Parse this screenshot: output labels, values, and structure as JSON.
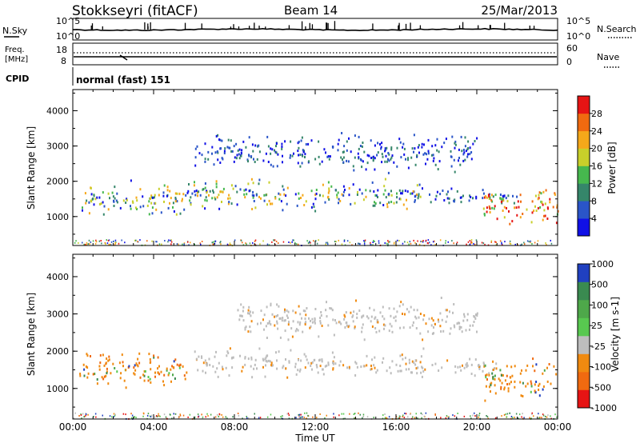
{
  "header": {
    "station": "Stokkseyri (fitACF)",
    "beam": "Beam 14",
    "date": "25/Mar/2013"
  },
  "top_panels": {
    "nsky_label": "N.Sky",
    "nsky_ticks": [
      "10^5",
      "10^0"
    ],
    "nsearch_label": "N.Search",
    "nsearch_ticks": [
      "10^5",
      "10^0"
    ],
    "freq_label_1": "Freq.",
    "freq_label_2": "[MHz]",
    "freq_ticks": [
      "18",
      "8"
    ],
    "nave_label": "Nave",
    "nave_ticks": [
      "60",
      "0"
    ],
    "cpid_label": "CPID",
    "cpid_value": "normal (fast) 151"
  },
  "chart_data": [
    {
      "type": "heatmap",
      "quantity": "Power",
      "ylabel": "Slant Range [km]",
      "ylim": [
        180,
        4600
      ],
      "yticks": [
        1000,
        2000,
        3000,
        4000
      ],
      "xlim_hours": [
        0,
        24
      ],
      "colorbar": {
        "label": "Power [dB]",
        "range": [
          0,
          32
        ],
        "ticks": [
          "4",
          "8",
          "12",
          "16",
          "20",
          "24",
          "28"
        ],
        "colors": [
          "#1010e6",
          "#2a55c8",
          "#35866a",
          "#46b84e",
          "#c8cf2a",
          "#f5a81a",
          "#f06a10",
          "#e61414"
        ]
      },
      "echo_regions": [
        {
          "t": [
            0.3,
            5.6
          ],
          "r": [
            900,
            2100
          ],
          "level": "mixed"
        },
        {
          "t": [
            5.6,
            17.5
          ],
          "r": [
            1100,
            2200
          ],
          "level": "mixed"
        },
        {
          "t": [
            17.5,
            22.0
          ],
          "r": [
            1300,
            1900
          ],
          "level": "weak"
        },
        {
          "t": [
            20.3,
            24.0
          ],
          "r": [
            600,
            2000
          ],
          "level": "strong"
        },
        {
          "t": [
            6.0,
            20.0
          ],
          "r": [
            2200,
            3500
          ],
          "level": "weak"
        }
      ]
    },
    {
      "type": "heatmap",
      "quantity": "Velocity",
      "ylabel": "Slant Range [km]",
      "ylim": [
        180,
        4600
      ],
      "yticks": [
        1000,
        2000,
        3000,
        4000
      ],
      "xlim_hours": [
        0,
        24
      ],
      "colorbar": {
        "label": "Velocity [m s-1]",
        "range": [
          -1000,
          1000
        ],
        "ticks": [
          "1000",
          "500",
          "100",
          "25",
          "-25",
          "-100",
          "-500",
          "-1000"
        ],
        "colors": [
          "#2040c0",
          "#3a8a50",
          "#4ea84a",
          "#58c850",
          "#bdbdbd",
          "#f08a10",
          "#f06a10",
          "#e61414"
        ]
      },
      "echo_regions": [
        {
          "t": [
            0.3,
            5.6
          ],
          "r": [
            900,
            2200
          ],
          "level": "away"
        },
        {
          "t": [
            6.0,
            17.5
          ],
          "r": [
            1200,
            2200
          ],
          "level": "ground"
        },
        {
          "t": [
            17.5,
            21.0
          ],
          "r": [
            1300,
            1900
          ],
          "level": "ground"
        },
        {
          "t": [
            20.3,
            24.0
          ],
          "r": [
            600,
            2000
          ],
          "level": "away"
        },
        {
          "t": [
            8.0,
            20.0
          ],
          "r": [
            2200,
            3500
          ],
          "level": "ground"
        }
      ]
    }
  ],
  "time_axis": {
    "ticks": [
      "00:00",
      "04:00",
      "08:00",
      "12:00",
      "16:00",
      "20:00",
      "00:00"
    ],
    "label": "Time UT"
  }
}
